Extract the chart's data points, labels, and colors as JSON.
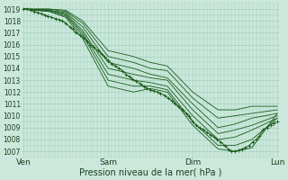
{
  "title": "",
  "xlabel": "Pression niveau de la mer( hPa )",
  "ylabel": "",
  "bg_color": "#cce8dc",
  "grid_color": "#99ccb8",
  "line_color": "#1a5c1a",
  "ylim": [
    1006.5,
    1019.5
  ],
  "yticks": [
    1007,
    1008,
    1009,
    1010,
    1011,
    1012,
    1013,
    1014,
    1015,
    1016,
    1017,
    1018,
    1019
  ],
  "xtick_labels": [
    "Ven",
    "Sam",
    "Dim",
    "Lun"
  ],
  "xtick_positions": [
    0.0,
    1.0,
    2.0,
    3.0
  ],
  "lines": [
    {
      "x": [
        0.0,
        0.3,
        0.5,
        0.7,
        1.0,
        1.3,
        1.5,
        1.7,
        2.0,
        2.3,
        2.5,
        2.7,
        3.0
      ],
      "y": [
        1019.0,
        1018.8,
        1018.3,
        1016.5,
        1012.5,
        1012.0,
        1012.3,
        1012.0,
        1009.2,
        1007.2,
        1007.0,
        1007.3,
        1010.2
      ]
    },
    {
      "x": [
        0.0,
        0.3,
        0.5,
        0.7,
        1.0,
        1.3,
        1.5,
        1.7,
        2.0,
        2.3,
        2.5,
        2.7,
        3.0
      ],
      "y": [
        1019.0,
        1018.8,
        1018.4,
        1016.8,
        1013.0,
        1012.5,
        1012.5,
        1012.2,
        1009.5,
        1007.5,
        1007.5,
        1008.0,
        1009.8
      ]
    },
    {
      "x": [
        0.0,
        0.3,
        0.5,
        0.7,
        1.0,
        1.3,
        1.5,
        1.7,
        2.0,
        2.3,
        2.5,
        2.7,
        3.0
      ],
      "y": [
        1019.0,
        1018.9,
        1018.5,
        1017.0,
        1013.5,
        1013.0,
        1012.8,
        1012.5,
        1010.0,
        1008.0,
        1008.2,
        1008.8,
        1009.8
      ]
    },
    {
      "x": [
        0.0,
        0.3,
        0.5,
        0.7,
        1.0,
        1.3,
        1.5,
        1.7,
        2.0,
        2.3,
        2.5,
        2.7,
        3.0
      ],
      "y": [
        1019.0,
        1018.9,
        1018.6,
        1017.2,
        1014.0,
        1013.5,
        1013.2,
        1013.0,
        1010.5,
        1008.5,
        1008.8,
        1009.2,
        1010.0
      ]
    },
    {
      "x": [
        0.0,
        0.3,
        0.5,
        0.7,
        1.0,
        1.3,
        1.5,
        1.7,
        2.0,
        2.3,
        2.5,
        2.7,
        3.0
      ],
      "y": [
        1019.0,
        1018.9,
        1018.7,
        1017.5,
        1014.5,
        1014.0,
        1013.5,
        1013.2,
        1011.0,
        1009.0,
        1009.3,
        1009.8,
        1010.2
      ]
    },
    {
      "x": [
        0.0,
        0.3,
        0.5,
        0.7,
        1.0,
        1.3,
        1.5,
        1.7,
        2.0,
        2.3,
        2.5,
        2.7,
        3.0
      ],
      "y": [
        1019.0,
        1019.0,
        1018.8,
        1017.8,
        1015.0,
        1014.5,
        1014.0,
        1013.8,
        1011.5,
        1009.8,
        1010.0,
        1010.2,
        1010.5
      ]
    },
    {
      "x": [
        0.0,
        0.3,
        0.5,
        0.7,
        1.0,
        1.3,
        1.5,
        1.7,
        2.0,
        2.3,
        2.5,
        2.7,
        3.0
      ],
      "y": [
        1019.0,
        1019.0,
        1018.9,
        1018.0,
        1015.5,
        1015.0,
        1014.5,
        1014.2,
        1012.0,
        1010.5,
        1010.5,
        1010.8,
        1010.8
      ]
    }
  ],
  "obs_line": {
    "x": [
      0.0,
      0.04,
      0.08,
      0.13,
      0.17,
      0.21,
      0.25,
      0.29,
      0.33,
      0.38,
      0.42,
      0.46,
      0.5,
      0.55,
      0.58,
      0.62,
      0.67,
      0.71,
      0.75,
      0.79,
      0.83,
      0.88,
      0.92,
      0.96,
      1.0,
      1.04,
      1.08,
      1.13,
      1.17,
      1.21,
      1.25,
      1.29,
      1.33,
      1.38,
      1.42,
      1.46,
      1.5,
      1.54,
      1.58,
      1.62,
      1.67,
      1.71,
      1.75,
      1.79,
      1.83,
      1.88,
      1.92,
      1.96,
      2.0,
      2.04,
      2.08,
      2.13,
      2.17,
      2.21,
      2.25,
      2.29,
      2.33,
      2.38,
      2.42,
      2.46,
      2.5,
      2.54,
      2.58,
      2.62,
      2.67,
      2.71,
      2.75,
      2.79,
      2.83,
      2.88,
      2.92,
      2.96,
      3.0
    ],
    "y": [
      1019.0,
      1019.0,
      1018.9,
      1018.8,
      1018.7,
      1018.6,
      1018.5,
      1018.4,
      1018.3,
      1018.2,
      1018.1,
      1018.0,
      1017.8,
      1017.5,
      1017.3,
      1017.0,
      1016.8,
      1016.6,
      1016.3,
      1016.0,
      1015.8,
      1015.5,
      1015.2,
      1015.0,
      1014.7,
      1014.4,
      1014.2,
      1014.0,
      1013.8,
      1013.5,
      1013.3,
      1013.1,
      1012.9,
      1012.7,
      1012.5,
      1012.3,
      1012.2,
      1012.1,
      1012.0,
      1011.9,
      1011.7,
      1011.5,
      1011.3,
      1011.0,
      1010.8,
      1010.5,
      1010.2,
      1010.0,
      1009.5,
      1009.2,
      1009.0,
      1008.8,
      1008.6,
      1008.4,
      1008.2,
      1008.0,
      1007.8,
      1007.5,
      1007.2,
      1007.0,
      1007.0,
      1007.1,
      1007.2,
      1007.3,
      1007.5,
      1007.8,
      1008.0,
      1008.3,
      1008.8,
      1009.0,
      1009.2,
      1009.4,
      1009.5
    ]
  }
}
